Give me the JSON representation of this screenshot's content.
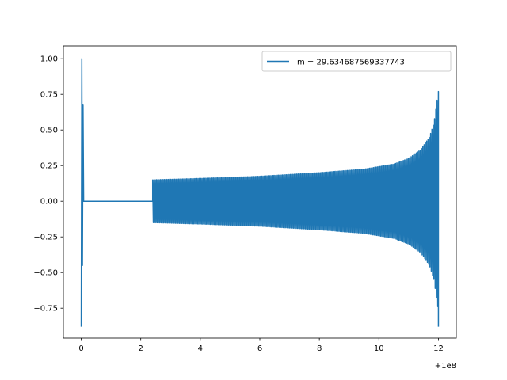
{
  "chart_data": {
    "type": "line",
    "title": "",
    "xlabel": "",
    "ylabel": "",
    "x_offset_label": "+1e8",
    "xlim": [
      -0.6,
      12.6
    ],
    "ylim": [
      -0.96,
      1.09
    ],
    "x_ticks": [
      0,
      2,
      4,
      6,
      8,
      10,
      12
    ],
    "x_tick_labels": [
      "0",
      "2",
      "4",
      "6",
      "8",
      "10",
      "12"
    ],
    "y_ticks": [
      -0.75,
      -0.5,
      -0.25,
      0.0,
      0.25,
      0.5,
      0.75,
      1.0
    ],
    "y_tick_labels": [
      "−0.75",
      "−0.50",
      "−0.25",
      "0.00",
      "0.25",
      "0.50",
      "0.75",
      "1.00"
    ],
    "grid": false,
    "legend": {
      "position": "top-right",
      "entries": [
        "m = 29.634687569337743"
      ]
    },
    "series": [
      {
        "name": "m = 29.634687569337743",
        "color": "#1f77b4",
        "segments": [
          {
            "kind": "spikes",
            "x": [
              0.0,
              0.02,
              0.04,
              0.06,
              0.08
            ],
            "y": [
              -0.88,
              1.0,
              -0.45,
              0.68,
              0.02
            ]
          },
          {
            "kind": "flat",
            "x": [
              0.08,
              2.4
            ],
            "y": [
              0.0,
              0.0
            ]
          },
          {
            "kind": "oscillation",
            "x_start": 2.4,
            "x_end": 12.0,
            "cycles": 220,
            "envelope": [
              [
                2.4,
                0.15
              ],
              [
                4.0,
                0.16
              ],
              [
                6.0,
                0.175
              ],
              [
                8.0,
                0.2
              ],
              [
                9.5,
                0.225
              ],
              [
                10.5,
                0.26
              ],
              [
                11.0,
                0.3
              ],
              [
                11.4,
                0.36
              ],
              [
                11.7,
                0.45
              ],
              [
                11.85,
                0.55
              ],
              [
                11.95,
                0.7
              ],
              [
                12.0,
                0.77
              ]
            ],
            "end_min": -0.88
          }
        ]
      }
    ]
  }
}
